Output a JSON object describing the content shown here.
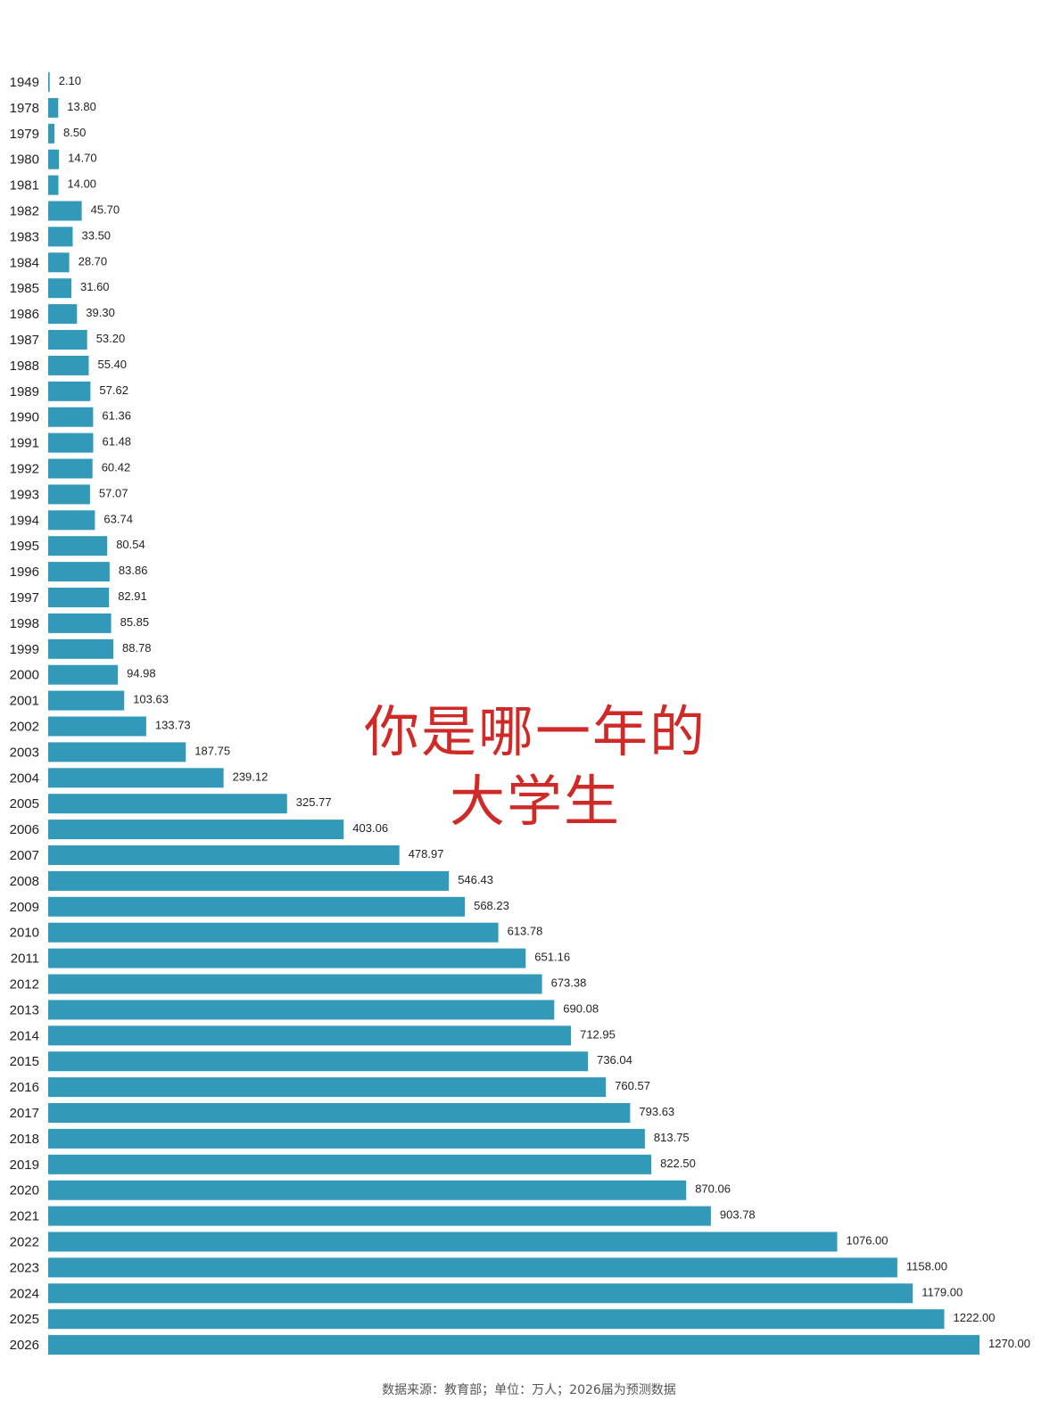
{
  "overlay": {
    "line1": "你是哪一年的",
    "line2": "大学生",
    "color": "#cf2a27"
  },
  "footer": {
    "source": "数据来源：教育部；单位：万人；2026届为预测数据"
  },
  "chart_data": {
    "type": "bar",
    "orientation": "horizontal",
    "bar_color": "#3399b8",
    "grid": false,
    "legend": "none",
    "xlim": [
      0,
      1270
    ],
    "categories": [
      "1949",
      "1978",
      "1979",
      "1980",
      "1981",
      "1982",
      "1983",
      "1984",
      "1985",
      "1986",
      "1987",
      "1988",
      "1989",
      "1990",
      "1991",
      "1992",
      "1993",
      "1994",
      "1995",
      "1996",
      "1997",
      "1998",
      "1999",
      "2000",
      "2001",
      "2002",
      "2003",
      "2004",
      "2005",
      "2006",
      "2007",
      "2008",
      "2009",
      "2010",
      "2011",
      "2012",
      "2013",
      "2014",
      "2015",
      "2016",
      "2017",
      "2018",
      "2019",
      "2020",
      "2021",
      "2022",
      "2023",
      "2024",
      "2025",
      "2026"
    ],
    "values": [
      2.1,
      13.8,
      8.5,
      14.7,
      14.0,
      45.7,
      33.5,
      28.7,
      31.6,
      39.3,
      53.2,
      55.4,
      57.62,
      61.36,
      61.48,
      60.42,
      57.07,
      63.74,
      80.54,
      83.86,
      82.91,
      85.85,
      88.78,
      94.98,
      103.63,
      133.73,
      187.75,
      239.12,
      325.77,
      403.06,
      478.97,
      546.43,
      568.23,
      613.78,
      651.16,
      673.38,
      690.08,
      712.95,
      736.04,
      760.57,
      793.63,
      813.75,
      822.5,
      870.06,
      903.78,
      1076.0,
      1158.0,
      1179.0,
      1222.0,
      1270.0
    ],
    "value_labels": [
      "2.10",
      "13.80",
      "8.50",
      "14.70",
      "14.00",
      "45.70",
      "33.50",
      "28.70",
      "31.60",
      "39.30",
      "53.20",
      "55.40",
      "57.62",
      "61.36",
      "61.48",
      "60.42",
      "57.07",
      "63.74",
      "80.54",
      "83.86",
      "82.91",
      "85.85",
      "88.78",
      "94.98",
      "103.63",
      "133.73",
      "187.75",
      "239.12",
      "325.77",
      "403.06",
      "478.97",
      "546.43",
      "568.23",
      "613.78",
      "651.16",
      "673.38",
      "690.08",
      "712.95",
      "736.04",
      "760.57",
      "793.63",
      "813.75",
      "822.50",
      "870.06",
      "903.78",
      "1076.00",
      "1158.00",
      "1179.00",
      "1222.00",
      "1270.00"
    ]
  }
}
